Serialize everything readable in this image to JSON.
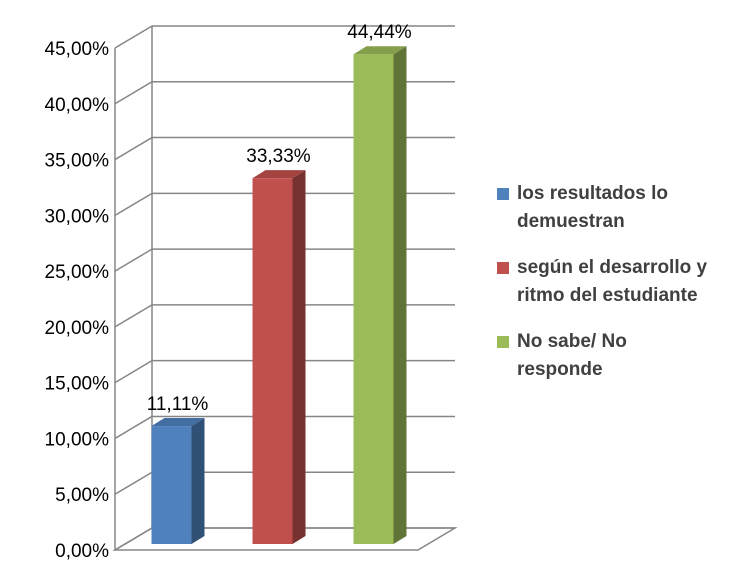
{
  "chart_data": {
    "type": "bar",
    "categories": [
      "los resultados lo demuestran",
      "según el desarrollo y ritmo del estudiante",
      "No sabe/ No responde"
    ],
    "values": [
      11.11,
      33.33,
      44.44
    ],
    "data_labels": [
      "11,11%",
      "33,33%",
      "44,44%"
    ],
    "legend": [
      {
        "line1": "los resultados lo",
        "line2": "demuestran",
        "color": "#4F81BD"
      },
      {
        "line1": "según el desarrollo y",
        "line2": "ritmo del estudiante",
        "color": "#C0504D"
      },
      {
        "line1": "No sabe/ No",
        "line2": "responde",
        "color": "#9BBB59"
      }
    ],
    "colors": [
      "#4F81BD",
      "#C0504D",
      "#9BBB59"
    ],
    "ylim": [
      0,
      45
    ],
    "y_ticks": [
      0,
      5,
      10,
      15,
      20,
      25,
      30,
      35,
      40,
      45
    ],
    "y_tick_labels": [
      "0,00%",
      "5,00%",
      "10,00%",
      "15,00%",
      "20,00%",
      "25,00%",
      "30,00%",
      "35,00%",
      "40,00%",
      "45,00%"
    ],
    "grid": true,
    "legend_position": "right",
    "title": "",
    "xlabel": "",
    "ylabel": ""
  }
}
